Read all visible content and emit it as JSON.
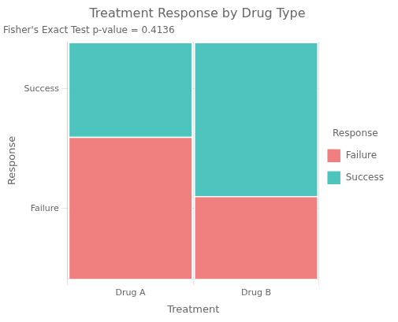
{
  "chart_data": {
    "type": "bar",
    "title": "Treatment Response by Drug Type",
    "subtitle": "Fisher's Exact Test p-value = 0.4136",
    "x_label": "Treatment",
    "y_label": "Response",
    "legend_title": "Response",
    "categories": [
      "Drug A",
      "Drug B"
    ],
    "series": [
      {
        "name": "Failure",
        "color": "#F08080",
        "values": [
          0.6,
          0.35
        ]
      },
      {
        "name": "Success",
        "color": "#4DC5BE",
        "values": [
          0.4,
          0.65
        ]
      }
    ],
    "stacked": true,
    "ylim": [
      0,
      1
    ],
    "yticks": [
      {
        "value": 0.297,
        "label": "Failure"
      },
      {
        "value": 0.803,
        "label": "Success"
      }
    ],
    "grid": true,
    "legend": "right"
  }
}
